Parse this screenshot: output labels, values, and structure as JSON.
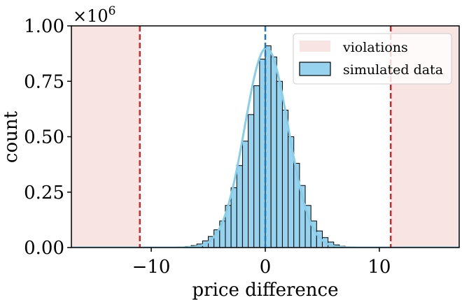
{
  "chart_data": {
    "type": "histogram",
    "title": "",
    "xlabel": "price difference",
    "ylabel": "count",
    "ylim": [
      0,
      1.0
    ],
    "xlim": [
      -17,
      17
    ],
    "y_multiplier": "×10^6",
    "y_multiplier_base": "×10",
    "y_multiplier_exp": "6",
    "xticks": [
      -10,
      0,
      10
    ],
    "yticks": [
      0.0,
      0.25,
      0.5,
      0.75,
      1.0
    ],
    "ytick_labels": [
      "0.00",
      "0.25",
      "0.50",
      "0.75",
      "1.00"
    ],
    "xtick_labels": [
      "−10",
      "0",
      "10"
    ],
    "bins": [
      {
        "x0": -7.5,
        "x1": -7.0,
        "count": 0.003
      },
      {
        "x0": -7.0,
        "x1": -6.5,
        "count": 0.005
      },
      {
        "x0": -6.5,
        "x1": -6.0,
        "count": 0.009
      },
      {
        "x0": -6.0,
        "x1": -5.5,
        "count": 0.016
      },
      {
        "x0": -5.5,
        "x1": -5.0,
        "count": 0.03
      },
      {
        "x0": -5.0,
        "x1": -4.5,
        "count": 0.05
      },
      {
        "x0": -4.5,
        "x1": -4.0,
        "count": 0.08
      },
      {
        "x0": -4.0,
        "x1": -3.5,
        "count": 0.12
      },
      {
        "x0": -3.5,
        "x1": -3.0,
        "count": 0.19
      },
      {
        "x0": -3.0,
        "x1": -2.5,
        "count": 0.27
      },
      {
        "x0": -2.5,
        "x1": -2.0,
        "count": 0.37
      },
      {
        "x0": -2.0,
        "x1": -1.5,
        "count": 0.48
      },
      {
        "x0": -1.5,
        "x1": -1.0,
        "count": 0.6
      },
      {
        "x0": -1.0,
        "x1": -0.5,
        "count": 0.73
      },
      {
        "x0": -0.5,
        "x1": 0.0,
        "count": 0.85
      },
      {
        "x0": 0.0,
        "x1": 0.5,
        "count": 0.91
      },
      {
        "x0": 0.5,
        "x1": 1.0,
        "count": 0.86
      },
      {
        "x0": 1.0,
        "x1": 1.5,
        "count": 0.75
      },
      {
        "x0": 1.5,
        "x1": 2.0,
        "count": 0.62
      },
      {
        "x0": 2.0,
        "x1": 2.5,
        "count": 0.5
      },
      {
        "x0": 2.5,
        "x1": 3.0,
        "count": 0.38
      },
      {
        "x0": 3.0,
        "x1": 3.5,
        "count": 0.28
      },
      {
        "x0": 3.5,
        "x1": 4.0,
        "count": 0.19
      },
      {
        "x0": 4.0,
        "x1": 4.5,
        "count": 0.12
      },
      {
        "x0": 4.5,
        "x1": 5.0,
        "count": 0.075
      },
      {
        "x0": 5.0,
        "x1": 5.5,
        "count": 0.045
      },
      {
        "x0": 5.5,
        "x1": 6.0,
        "count": 0.025
      },
      {
        "x0": 6.0,
        "x1": 6.5,
        "count": 0.012
      },
      {
        "x0": 6.5,
        "x1": 7.0,
        "count": 0.006
      },
      {
        "x0": 7.0,
        "x1": 7.5,
        "count": 0.003
      }
    ],
    "kde_curve": {
      "mean": 0.1,
      "sd": 1.9,
      "peak": 0.9
    },
    "reference_lines": [
      {
        "x": -11,
        "style": "dashed",
        "color": "#d62728"
      },
      {
        "x": 0,
        "style": "dashed",
        "color": "#1f77b4"
      },
      {
        "x": 11,
        "style": "dashed",
        "color": "#d62728"
      }
    ],
    "violation_regions": [
      {
        "x0": -17,
        "x1": -11
      },
      {
        "x0": 11,
        "x1": 17
      }
    ],
    "legend": {
      "position": "top-right",
      "entries": [
        {
          "label": "violations",
          "kind": "region"
        },
        {
          "label": "simulated data",
          "kind": "bar"
        }
      ]
    },
    "colors": {
      "bar_fill": "#97d3ee",
      "bar_edge": "#000000",
      "kde_line": "#87ceeb",
      "region_fill": "#f9e4e4",
      "violation_line": "#d62728",
      "mean_line": "#1f77b4"
    }
  }
}
